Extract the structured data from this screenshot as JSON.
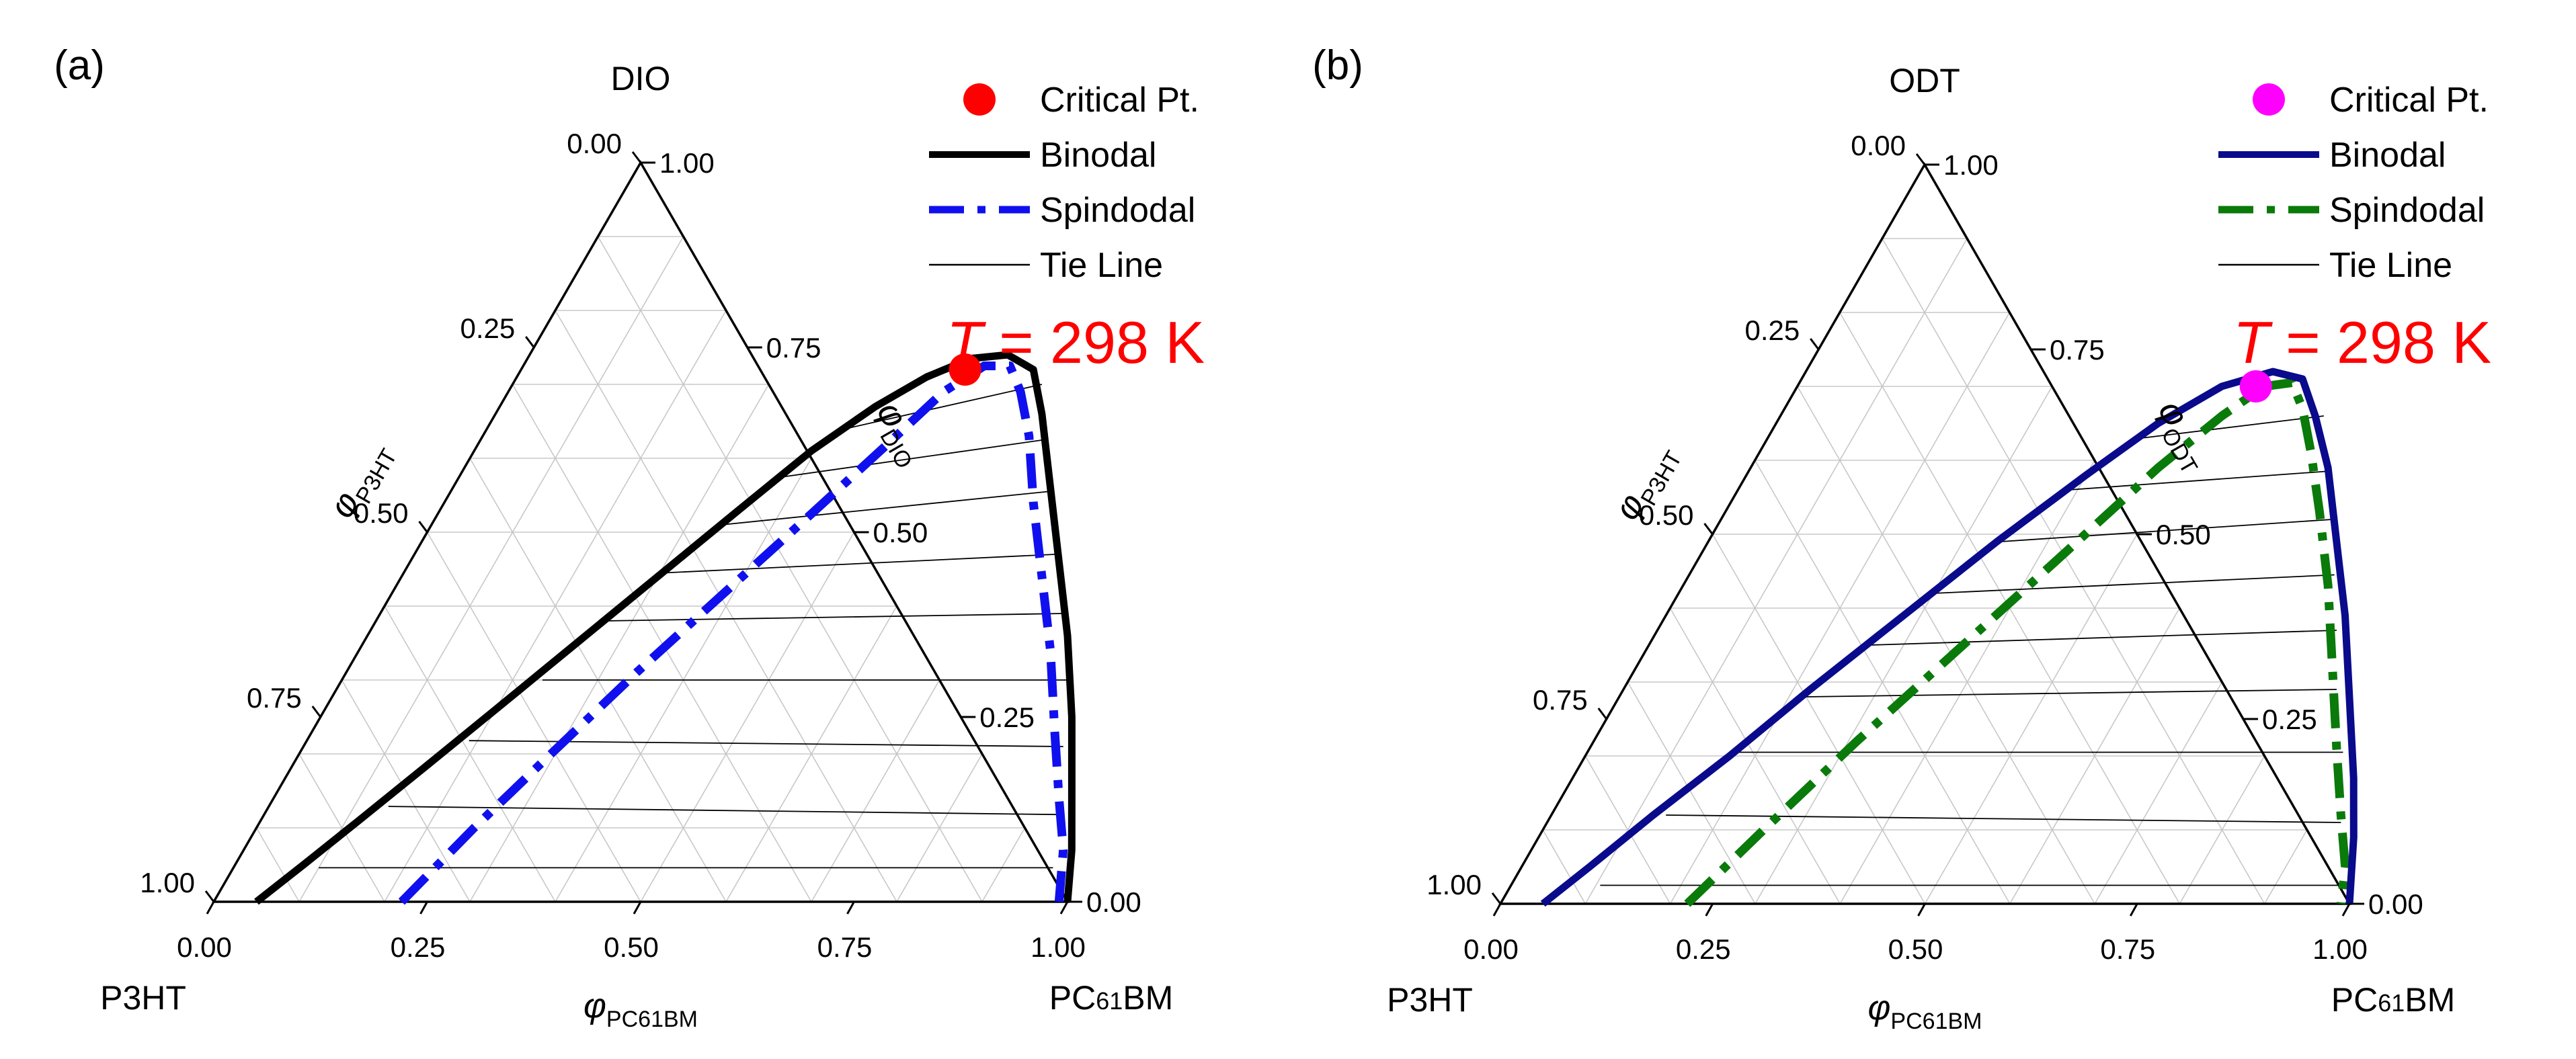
{
  "chart_data": [
    {
      "type": "ternary",
      "panel_label": "(a)",
      "vertices": {
        "top": "DIO",
        "left": "P3HT",
        "right_main": "PC",
        "right_sub": "61",
        "right_tail": "BM"
      },
      "axis_labels": {
        "left": {
          "main": "φ",
          "sub": "P3HT"
        },
        "right": {
          "main": "φ",
          "sub": "DIO"
        },
        "bottom": {
          "main": "φ",
          "sub": "PC61BM"
        }
      },
      "ticks": {
        "bottom": [
          "0.00",
          "0.25",
          "0.50",
          "0.75",
          "1.00"
        ],
        "right": [
          "0.00",
          "0.25",
          "0.50",
          "0.75",
          "1.00"
        ],
        "left": [
          "0.00",
          "0.25",
          "0.50",
          "0.75",
          "1.00"
        ]
      },
      "temperature": {
        "symbol": "T",
        "text": " = 298 K"
      },
      "colors": {
        "critical": "#ff0000",
        "binodal": "#000000",
        "spinodal": "#1010ee",
        "temp": "#ff0000"
      },
      "legend": [
        "Critical Pt.",
        "Binodal",
        "Spindodal",
        "Tie Line"
      ],
      "critical_point": {
        "pc61bm": 0.52,
        "solvent": 0.72
      },
      "binodal": [
        [
          0.05,
          0.0
        ],
        [
          0.08,
          0.05
        ],
        [
          0.115,
          0.11
        ],
        [
          0.155,
          0.18
        ],
        [
          0.2,
          0.26
        ],
        [
          0.25,
          0.35
        ],
        [
          0.3,
          0.44
        ],
        [
          0.35,
          0.53
        ],
        [
          0.395,
          0.61
        ],
        [
          0.44,
          0.67
        ],
        [
          0.48,
          0.71
        ],
        [
          0.52,
          0.735
        ],
        [
          0.56,
          0.74
        ],
        [
          0.6,
          0.72
        ],
        [
          0.64,
          0.66
        ],
        [
          0.7,
          0.56
        ],
        [
          0.76,
          0.46
        ],
        [
          0.82,
          0.36
        ],
        [
          0.88,
          0.25
        ],
        [
          0.93,
          0.15
        ],
        [
          0.97,
          0.07
        ],
        [
          1.0,
          0.0
        ]
      ],
      "spinodal": [
        [
          0.22,
          0.0
        ],
        [
          0.255,
          0.1
        ],
        [
          0.295,
          0.2
        ],
        [
          0.34,
          0.31
        ],
        [
          0.39,
          0.42
        ],
        [
          0.44,
          0.53
        ],
        [
          0.48,
          0.62
        ],
        [
          0.51,
          0.69
        ],
        [
          0.54,
          0.725
        ],
        [
          0.57,
          0.725
        ],
        [
          0.6,
          0.69
        ],
        [
          0.64,
          0.63
        ],
        [
          0.69,
          0.54
        ],
        [
          0.75,
          0.44
        ],
        [
          0.81,
          0.34
        ],
        [
          0.87,
          0.23
        ],
        [
          0.92,
          0.14
        ],
        [
          0.96,
          0.07
        ],
        [
          0.99,
          0.0
        ]
      ],
      "tie_lines": [
        [
          [
            0.1,
            0.046
          ],
          [
            0.96,
            0.046
          ]
        ],
        [
          [
            0.14,
            0.129
          ],
          [
            0.93,
            0.118
          ]
        ],
        [
          [
            0.19,
            0.218
          ],
          [
            0.89,
            0.21
          ]
        ],
        [
          [
            0.235,
            0.3
          ],
          [
            0.85,
            0.3
          ]
        ],
        [
          [
            0.27,
            0.38
          ],
          [
            0.8,
            0.39
          ]
        ],
        [
          [
            0.305,
            0.445
          ],
          [
            0.75,
            0.47
          ]
        ],
        [
          [
            0.34,
            0.51
          ],
          [
            0.7,
            0.555
          ]
        ],
        [
          [
            0.38,
            0.575
          ],
          [
            0.66,
            0.625
          ]
        ],
        [
          [
            0.42,
            0.64
          ],
          [
            0.62,
            0.7
          ]
        ]
      ]
    },
    {
      "type": "ternary",
      "panel_label": "(b)",
      "vertices": {
        "top": "ODT",
        "left": "P3HT",
        "right_main": "PC",
        "right_sub": "61",
        "right_tail": "BM"
      },
      "axis_labels": {
        "left": {
          "main": "φ",
          "sub": "P3HT"
        },
        "right": {
          "main": "φ",
          "sub": "ODT"
        },
        "bottom": {
          "main": "φ",
          "sub": "PC61BM"
        }
      },
      "ticks": {
        "bottom": [
          "0.00",
          "0.25",
          "0.50",
          "0.75",
          "1.00"
        ],
        "right": [
          "0.00",
          "0.25",
          "0.50",
          "0.75",
          "1.00"
        ],
        "left": [
          "0.00",
          "0.25",
          "0.50",
          "0.75",
          "1.00"
        ]
      },
      "temperature": {
        "symbol": "T",
        "text": " = 298 K"
      },
      "colors": {
        "critical": "#ff00ff",
        "binodal": "#0a0a8c",
        "spinodal": "#0a7a0a",
        "temp": "#ff0000"
      },
      "legend": [
        "Critical Pt.",
        "Binodal",
        "Spindodal",
        "Tie Line"
      ],
      "critical_point": {
        "pc61bm": 0.54,
        "solvent": 0.7
      },
      "binodal": [
        [
          0.05,
          0.0
        ],
        [
          0.08,
          0.05
        ],
        [
          0.12,
          0.12
        ],
        [
          0.17,
          0.2
        ],
        [
          0.22,
          0.29
        ],
        [
          0.28,
          0.39
        ],
        [
          0.34,
          0.49
        ],
        [
          0.4,
          0.58
        ],
        [
          0.45,
          0.65
        ],
        [
          0.5,
          0.7
        ],
        [
          0.55,
          0.72
        ],
        [
          0.59,
          0.71
        ],
        [
          0.63,
          0.66
        ],
        [
          0.68,
          0.59
        ],
        [
          0.74,
          0.49
        ],
        [
          0.8,
          0.39
        ],
        [
          0.86,
          0.28
        ],
        [
          0.92,
          0.17
        ],
        [
          0.96,
          0.09
        ],
        [
          1.0,
          0.0
        ]
      ],
      "spinodal": [
        [
          0.22,
          0.0
        ],
        [
          0.26,
          0.1
        ],
        [
          0.31,
          0.22
        ],
        [
          0.37,
          0.35
        ],
        [
          0.43,
          0.48
        ],
        [
          0.48,
          0.59
        ],
        [
          0.52,
          0.66
        ],
        [
          0.55,
          0.7
        ],
        [
          0.58,
          0.705
        ],
        [
          0.61,
          0.67
        ],
        [
          0.65,
          0.61
        ],
        [
          0.7,
          0.53
        ],
        [
          0.76,
          0.43
        ],
        [
          0.82,
          0.32
        ],
        [
          0.88,
          0.21
        ],
        [
          0.93,
          0.12
        ],
        [
          0.97,
          0.05
        ],
        [
          0.99,
          0.0
        ]
      ],
      "tie_lines": [
        [
          [
            0.105,
            0.025
          ],
          [
            0.985,
            0.025
          ]
        ],
        [
          [
            0.135,
            0.12
          ],
          [
            0.935,
            0.11
          ]
        ],
        [
          [
            0.175,
            0.205
          ],
          [
            0.89,
            0.205
          ]
        ],
        [
          [
            0.22,
            0.28
          ],
          [
            0.84,
            0.29
          ]
        ],
        [
          [
            0.26,
            0.35
          ],
          [
            0.8,
            0.37
          ]
        ],
        [
          [
            0.3,
            0.42
          ],
          [
            0.76,
            0.445
          ]
        ],
        [
          [
            0.345,
            0.49
          ],
          [
            0.72,
            0.52
          ]
        ],
        [
          [
            0.39,
            0.56
          ],
          [
            0.68,
            0.585
          ]
        ],
        [
          [
            0.44,
            0.63
          ],
          [
            0.64,
            0.66
          ]
        ]
      ]
    }
  ]
}
